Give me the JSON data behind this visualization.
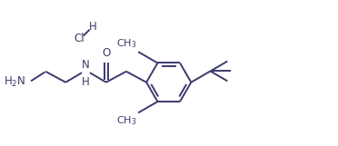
{
  "background_color": "#ffffff",
  "line_color": "#3a3a6e",
  "text_color": "#3a3a6e",
  "line_width": 1.4,
  "font_size": 8.5,
  "figsize": [
    3.72,
    1.61
  ],
  "dpi": 100,
  "xlim": [
    0,
    10.5
  ],
  "ylim": [
    0,
    4.5
  ]
}
